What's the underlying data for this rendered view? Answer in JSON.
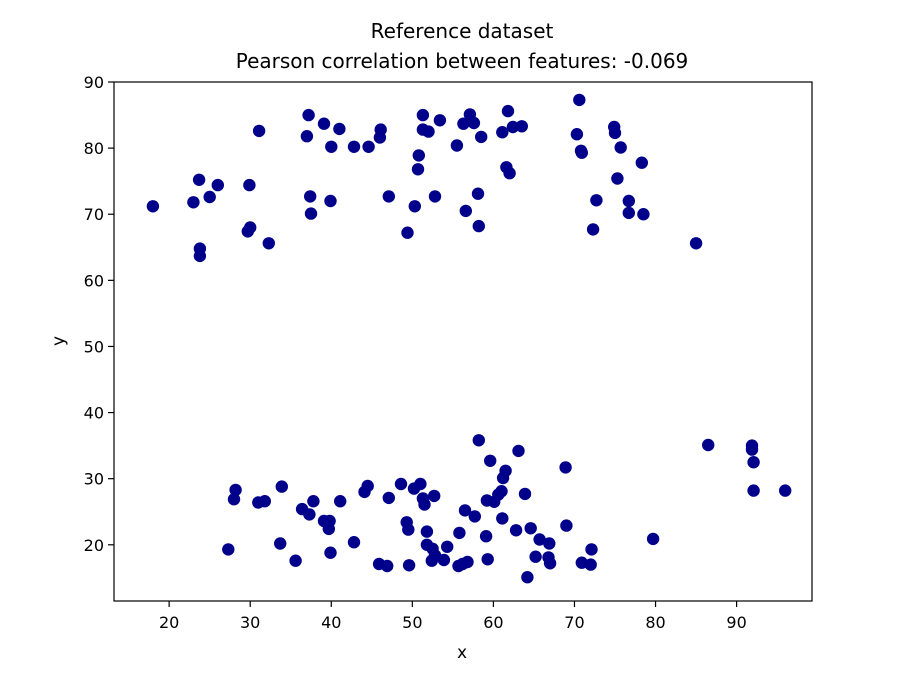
{
  "chart_data": {
    "type": "scatter",
    "title": "Reference dataset",
    "subtitle": "Pearson correlation between features: -0.069",
    "xlabel": "x",
    "ylabel": "y",
    "xlim": [
      13.2,
      99.3
    ],
    "ylim": [
      11.5,
      90.0
    ],
    "xticks": [
      20,
      30,
      40,
      50,
      60,
      70,
      80,
      90
    ],
    "yticks": [
      20,
      30,
      40,
      50,
      60,
      70,
      80,
      90
    ],
    "grid": false,
    "marker_color": "#00008b",
    "series": [
      {
        "points": [
          [
            18.0,
            71.2
          ],
          [
            23.0,
            71.8
          ],
          [
            23.7,
            75.2
          ],
          [
            23.8,
            64.8
          ],
          [
            23.8,
            63.7
          ],
          [
            25.0,
            72.6
          ],
          [
            26.0,
            74.4
          ],
          [
            29.7,
            67.4
          ],
          [
            30.0,
            68.0
          ],
          [
            29.9,
            74.4
          ],
          [
            31.1,
            82.6
          ],
          [
            32.3,
            65.6
          ],
          [
            37.2,
            85.0
          ],
          [
            37.0,
            81.8
          ],
          [
            37.4,
            72.7
          ],
          [
            37.5,
            70.1
          ],
          [
            39.1,
            83.7
          ],
          [
            40.0,
            80.2
          ],
          [
            39.9,
            72.0
          ],
          [
            41.0,
            82.9
          ],
          [
            42.8,
            80.2
          ],
          [
            44.6,
            80.2
          ],
          [
            46.0,
            81.6
          ],
          [
            46.1,
            82.8
          ],
          [
            47.1,
            72.7
          ],
          [
            49.4,
            67.2
          ],
          [
            50.3,
            71.2
          ],
          [
            50.7,
            76.8
          ],
          [
            50.8,
            78.9
          ],
          [
            51.3,
            85.0
          ],
          [
            51.3,
            82.8
          ],
          [
            52.0,
            82.5
          ],
          [
            52.8,
            72.7
          ],
          [
            53.4,
            84.2
          ],
          [
            55.5,
            80.4
          ],
          [
            56.3,
            83.7
          ],
          [
            56.6,
            70.5
          ],
          [
            57.1,
            85.1
          ],
          [
            57.6,
            83.8
          ],
          [
            58.1,
            73.1
          ],
          [
            58.2,
            68.2
          ],
          [
            58.5,
            81.7
          ],
          [
            61.1,
            82.4
          ],
          [
            61.6,
            77.1
          ],
          [
            61.8,
            85.6
          ],
          [
            62.0,
            76.2
          ],
          [
            62.4,
            83.2
          ],
          [
            63.5,
            83.3
          ],
          [
            70.3,
            82.1
          ],
          [
            70.6,
            87.3
          ],
          [
            70.8,
            79.6
          ],
          [
            70.9,
            79.3
          ],
          [
            72.3,
            67.7
          ],
          [
            72.7,
            72.1
          ],
          [
            74.9,
            83.2
          ],
          [
            75.0,
            82.3
          ],
          [
            75.3,
            75.4
          ],
          [
            75.7,
            80.1
          ],
          [
            76.7,
            72.0
          ],
          [
            76.7,
            70.2
          ],
          [
            78.3,
            77.8
          ],
          [
            78.5,
            70.0
          ],
          [
            85.0,
            65.6
          ],
          [
            27.3,
            19.3
          ],
          [
            28.0,
            26.9
          ],
          [
            28.2,
            28.3
          ],
          [
            31.0,
            26.4
          ],
          [
            31.8,
            26.6
          ],
          [
            33.7,
            20.2
          ],
          [
            33.9,
            28.8
          ],
          [
            35.6,
            17.6
          ],
          [
            36.4,
            25.4
          ],
          [
            37.3,
            24.6
          ],
          [
            37.8,
            26.6
          ],
          [
            39.1,
            23.6
          ],
          [
            39.7,
            22.4
          ],
          [
            39.8,
            23.6
          ],
          [
            39.9,
            18.8
          ],
          [
            41.1,
            26.6
          ],
          [
            42.8,
            20.4
          ],
          [
            44.1,
            28.0
          ],
          [
            44.5,
            28.9
          ],
          [
            45.9,
            17.1
          ],
          [
            46.9,
            16.8
          ],
          [
            47.1,
            27.1
          ],
          [
            48.6,
            29.2
          ],
          [
            49.3,
            23.4
          ],
          [
            49.5,
            22.3
          ],
          [
            49.6,
            16.9
          ],
          [
            50.2,
            28.5
          ],
          [
            51.0,
            29.2
          ],
          [
            51.3,
            27.0
          ],
          [
            51.5,
            26.1
          ],
          [
            51.8,
            22.0
          ],
          [
            51.8,
            20.0
          ],
          [
            52.4,
            17.6
          ],
          [
            52.5,
            19.4
          ],
          [
            52.7,
            27.4
          ],
          [
            52.8,
            18.4
          ],
          [
            53.9,
            17.7
          ],
          [
            54.3,
            19.7
          ],
          [
            55.7,
            16.8
          ],
          [
            55.8,
            21.8
          ],
          [
            56.2,
            17.1
          ],
          [
            56.5,
            25.2
          ],
          [
            56.8,
            17.4
          ],
          [
            57.7,
            24.3
          ],
          [
            58.2,
            35.8
          ],
          [
            59.1,
            21.3
          ],
          [
            59.2,
            26.7
          ],
          [
            59.3,
            17.8
          ],
          [
            59.6,
            32.7
          ],
          [
            60.1,
            26.5
          ],
          [
            60.6,
            27.6
          ],
          [
            61.0,
            28.1
          ],
          [
            61.1,
            24.0
          ],
          [
            61.2,
            30.1
          ],
          [
            61.5,
            31.2
          ],
          [
            62.8,
            22.2
          ],
          [
            63.1,
            34.2
          ],
          [
            63.9,
            27.7
          ],
          [
            64.2,
            15.1
          ],
          [
            64.6,
            22.5
          ],
          [
            65.2,
            18.2
          ],
          [
            65.7,
            20.8
          ],
          [
            66.8,
            18.1
          ],
          [
            66.9,
            20.2
          ],
          [
            67.0,
            17.2
          ],
          [
            68.9,
            31.7
          ],
          [
            69.0,
            22.9
          ],
          [
            70.9,
            17.3
          ],
          [
            72.0,
            17.0
          ],
          [
            72.1,
            19.3
          ],
          [
            79.7,
            20.9
          ],
          [
            86.5,
            35.1
          ],
          [
            91.9,
            35.0
          ],
          [
            91.9,
            34.4
          ],
          [
            92.1,
            32.5
          ],
          [
            92.1,
            28.2
          ],
          [
            96.0,
            28.2
          ]
        ]
      }
    ]
  }
}
